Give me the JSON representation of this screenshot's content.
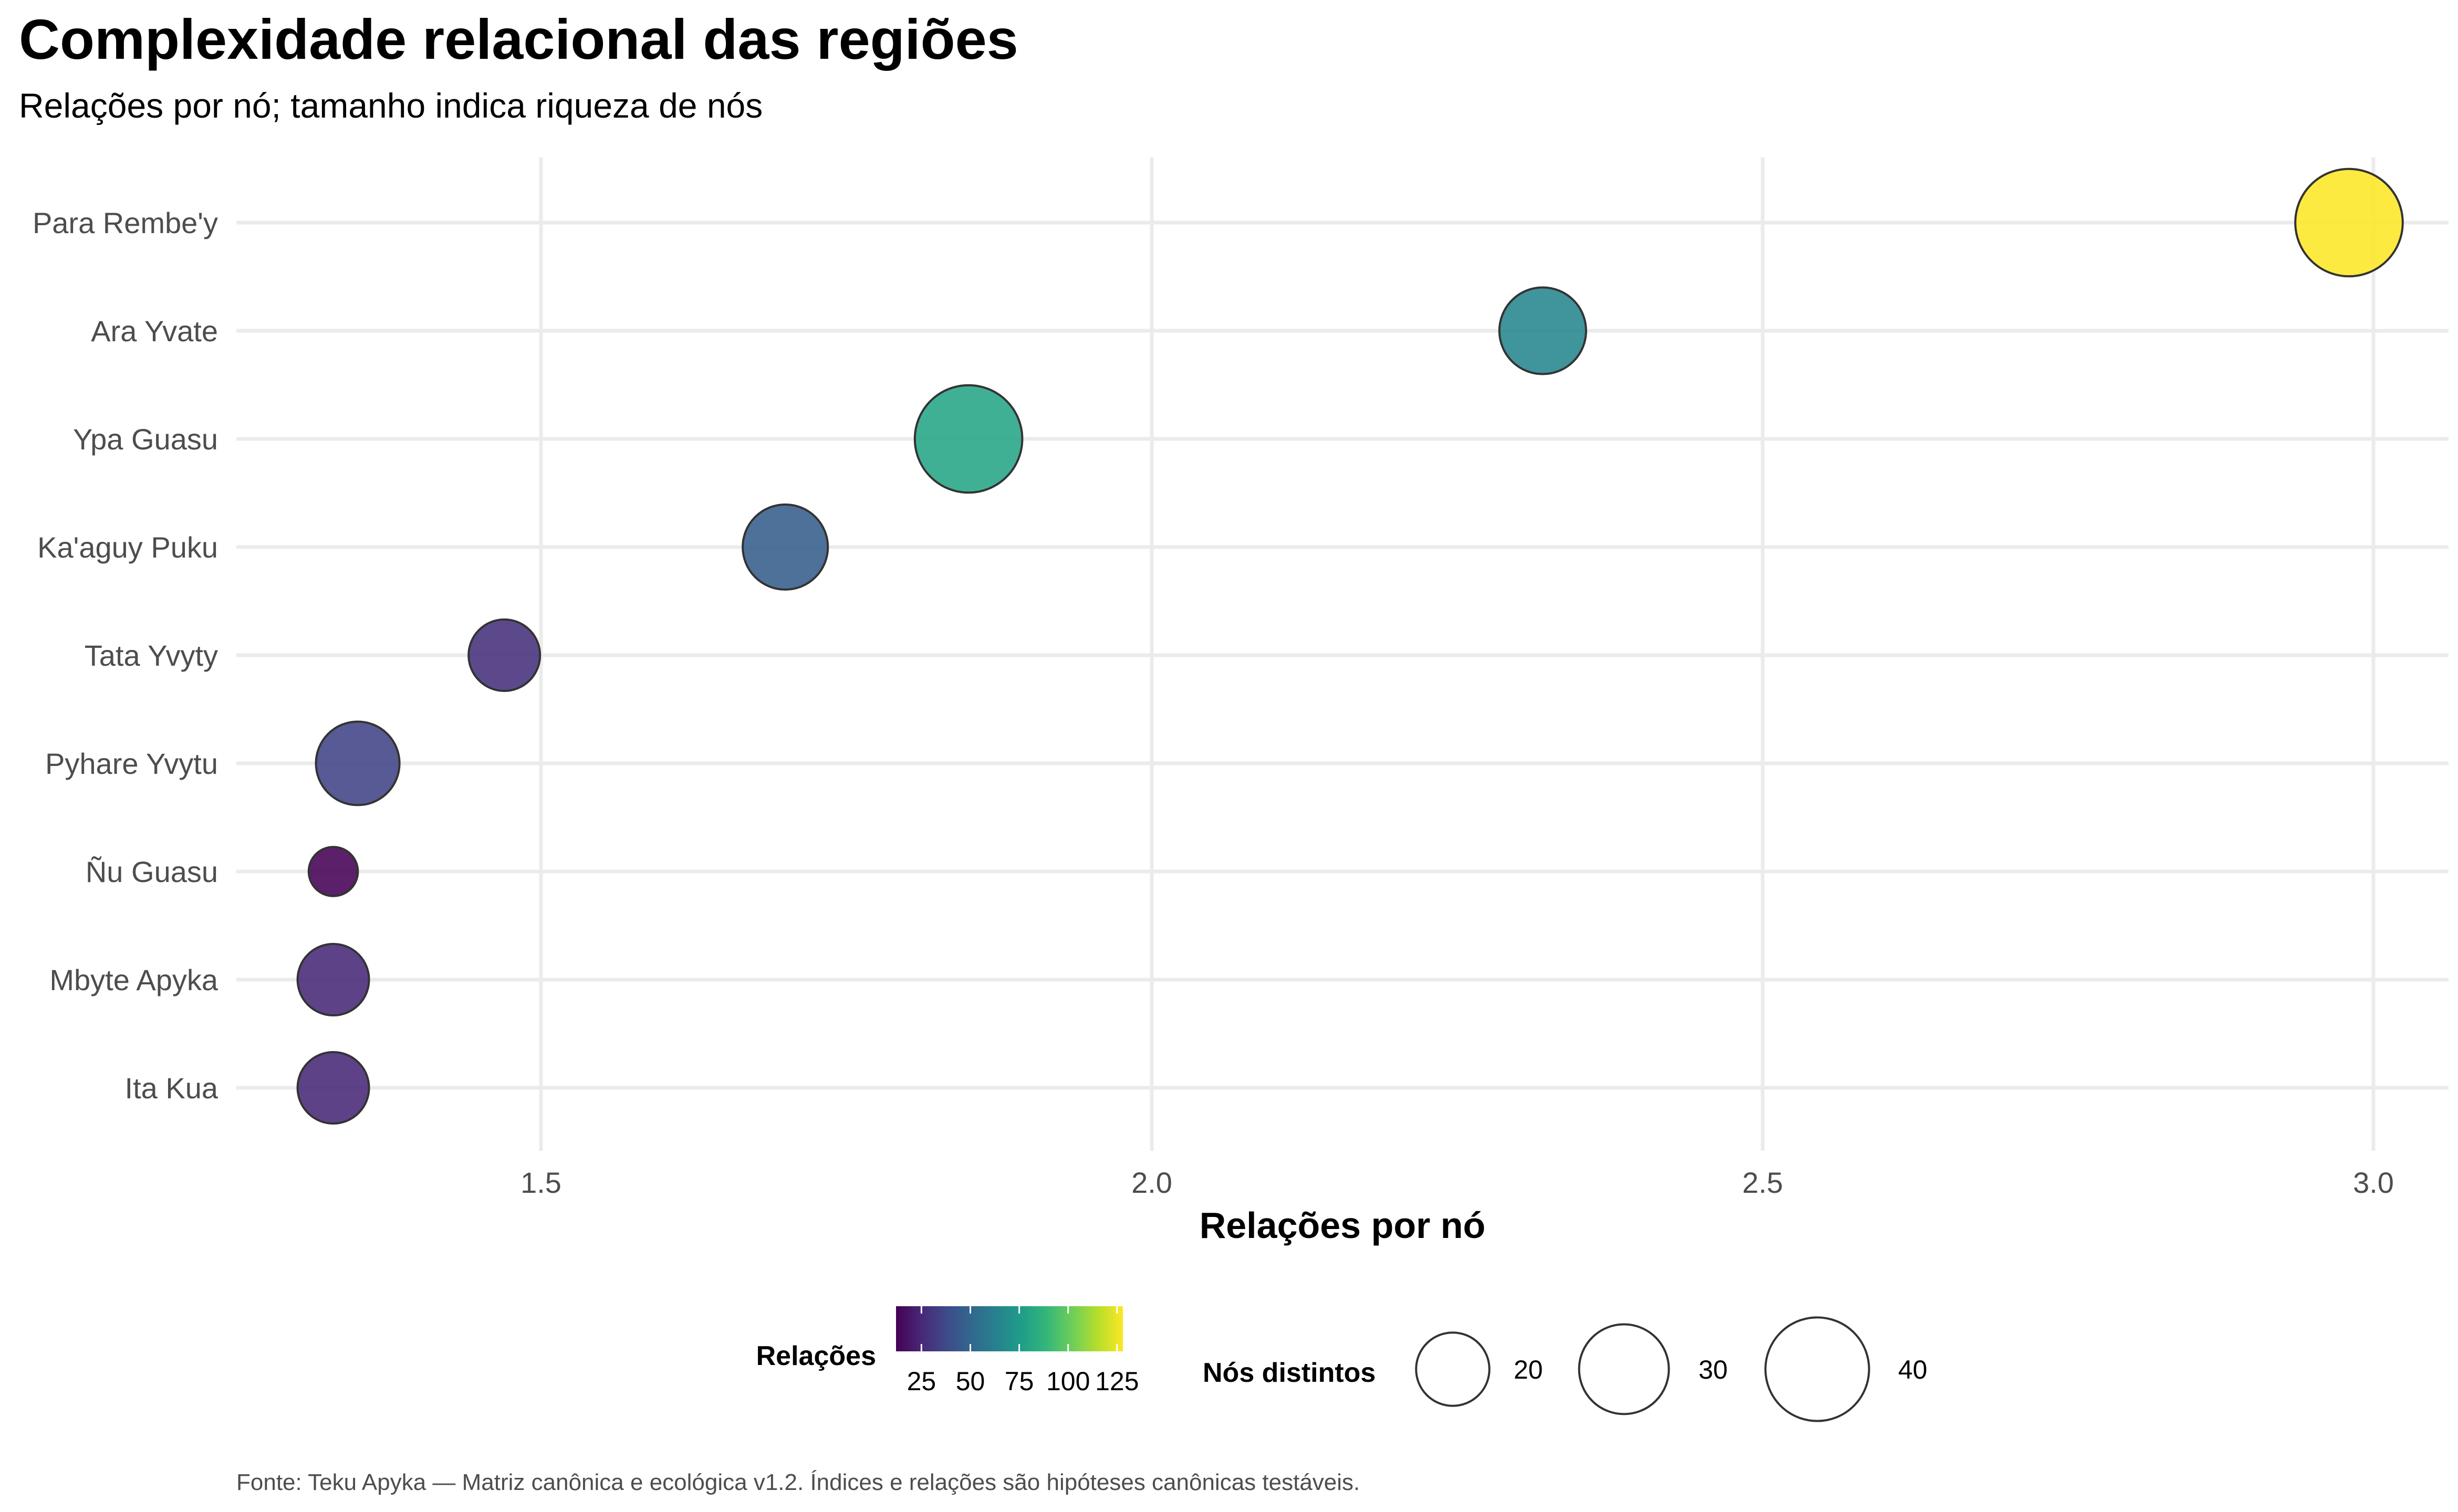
{
  "chart_data": {
    "type": "scatter",
    "title": "Complexidade relacional das regiões",
    "subtitle": "Relações por nó; tamanho indica riqueza de nós",
    "xlabel": "Relações por nó",
    "ylabel": "",
    "xlim": [
      1.25,
      3.06
    ],
    "xticks": [
      "1.5",
      "2.0",
      "2.5",
      "3.0"
    ],
    "categories": [
      "Para Rembe'y",
      "Ara Yvate",
      "Ypa Guasu",
      "Ka'aguy Puku",
      "Tata Yvyty",
      "Pyhare Yvytu",
      "Ñu Guasu",
      "Mbyte Apyka",
      "Ita Kua"
    ],
    "points": [
      {
        "region": "Para Rembe'y",
        "x": 2.98,
        "relacoes": 128,
        "nos": 43
      },
      {
        "region": "Ara Yvate",
        "x": 2.32,
        "relacoes": 65,
        "nos": 28
      },
      {
        "region": "Ypa Guasu",
        "x": 1.85,
        "relacoes": 80,
        "nos": 43
      },
      {
        "region": "Ka'aguy Puku",
        "x": 1.7,
        "relacoes": 46,
        "nos": 27
      },
      {
        "region": "Tata Yvyty",
        "x": 1.47,
        "relacoes": 28,
        "nos": 19
      },
      {
        "region": "Pyhare Yvytu",
        "x": 1.35,
        "relacoes": 35,
        "nos": 26
      },
      {
        "region": "Ñu Guasu",
        "x": 1.33,
        "relacoes": 12,
        "nos": 9
      },
      {
        "region": "Mbyte Apyka",
        "x": 1.33,
        "relacoes": 25,
        "nos": 19
      },
      {
        "region": "Ita Kua",
        "x": 1.33,
        "relacoes": 25,
        "nos": 19
      }
    ],
    "color_legend": {
      "title": "Relações",
      "labels": [
        "25",
        "50",
        "75",
        "100",
        "125"
      ],
      "values": [
        25,
        50,
        75,
        100,
        125
      ],
      "range": [
        12,
        128
      ],
      "palette": [
        "#440154",
        "#482878",
        "#3e4a89",
        "#31688e",
        "#26828e",
        "#1f9e89",
        "#35b779",
        "#6ece58",
        "#b5de2b",
        "#fde725"
      ]
    },
    "size_legend": {
      "title": "Nós distintos",
      "labels": [
        "20",
        "30",
        "40"
      ],
      "values": [
        20,
        30,
        40
      ]
    },
    "grid": true,
    "legend_position": "bottom",
    "caption": "Fonte: Teku Apyka — Matriz canônica e ecológica v1.2. Índices e relações são hipóteses canônicas testáveis."
  }
}
